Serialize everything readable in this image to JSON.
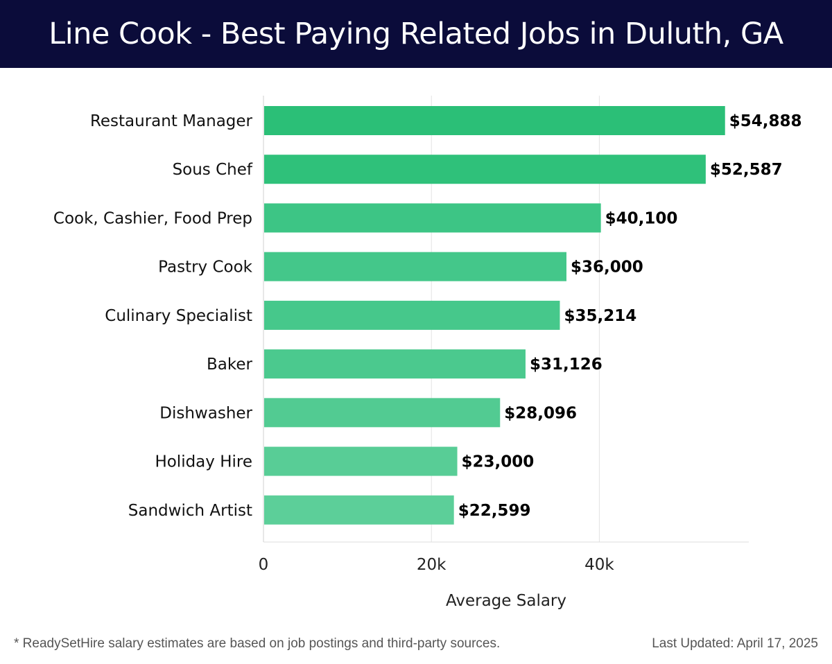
{
  "chart_data": {
    "type": "bar",
    "orientation": "horizontal",
    "title": "Line Cook - Best Paying Related Jobs in Duluth, GA",
    "xlabel": "Average Salary",
    "ylabel": "",
    "xlim": [
      0,
      57800
    ],
    "x_ticks": [
      {
        "value": 0,
        "label": "0"
      },
      {
        "value": 20000,
        "label": "20k"
      },
      {
        "value": 40000,
        "label": "40k"
      }
    ],
    "grid": true,
    "categories": [
      "Restaurant Manager",
      "Sous Chef",
      "Cook, Cashier, Food Prep",
      "Pastry Cook",
      "Culinary Specialist",
      "Baker",
      "Dishwasher",
      "Holiday Hire",
      "Sandwich Artist"
    ],
    "values": [
      54888,
      52587,
      40100,
      36000,
      35214,
      31126,
      28096,
      23000,
      22599
    ],
    "value_labels": [
      "$54,888",
      "$52,587",
      "$40,100",
      "$36,000",
      "$35,214",
      "$31,126",
      "$28,096",
      "$23,000",
      "$22,599"
    ],
    "bar_colors": [
      "#2bbf77",
      "#2fc17a",
      "#3dc585",
      "#44c78a",
      "#46c88b",
      "#4bc98e",
      "#52cb92",
      "#58cd96",
      "#5ccf99"
    ]
  },
  "footer": {
    "note": "* ReadySetHire salary estimates are based on job postings and third-party sources.",
    "updated": "Last Updated: April 17, 2025"
  }
}
